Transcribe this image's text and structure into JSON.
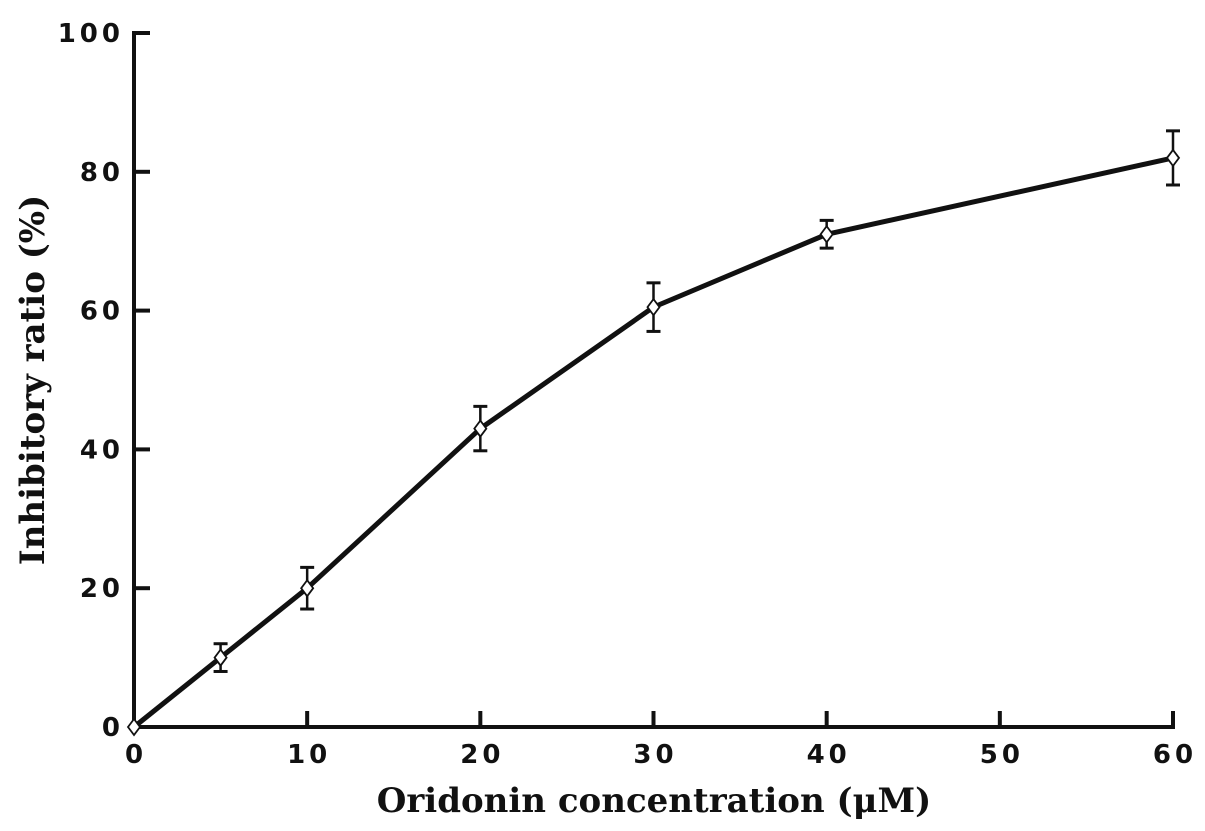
{
  "chart_data": {
    "type": "line",
    "title": "",
    "xlabel": "Oridonin concentration (μM)",
    "ylabel": "Inhibitory ratio (%)",
    "xlim": [
      0,
      60
    ],
    "ylim": [
      0,
      100
    ],
    "xticks": [
      0,
      10,
      20,
      30,
      40,
      50,
      60
    ],
    "yticks": [
      0,
      20,
      40,
      60,
      80,
      100
    ],
    "grid": false,
    "marker": "open-diamond",
    "line_color": "#111111",
    "series": [
      {
        "x": [
          0,
          5,
          10,
          20,
          30,
          40,
          60
        ],
        "y": [
          0,
          10,
          20,
          43,
          60.5,
          71,
          82
        ],
        "error": [
          0,
          2,
          3,
          3.2,
          3.5,
          2,
          3.9
        ]
      }
    ]
  }
}
